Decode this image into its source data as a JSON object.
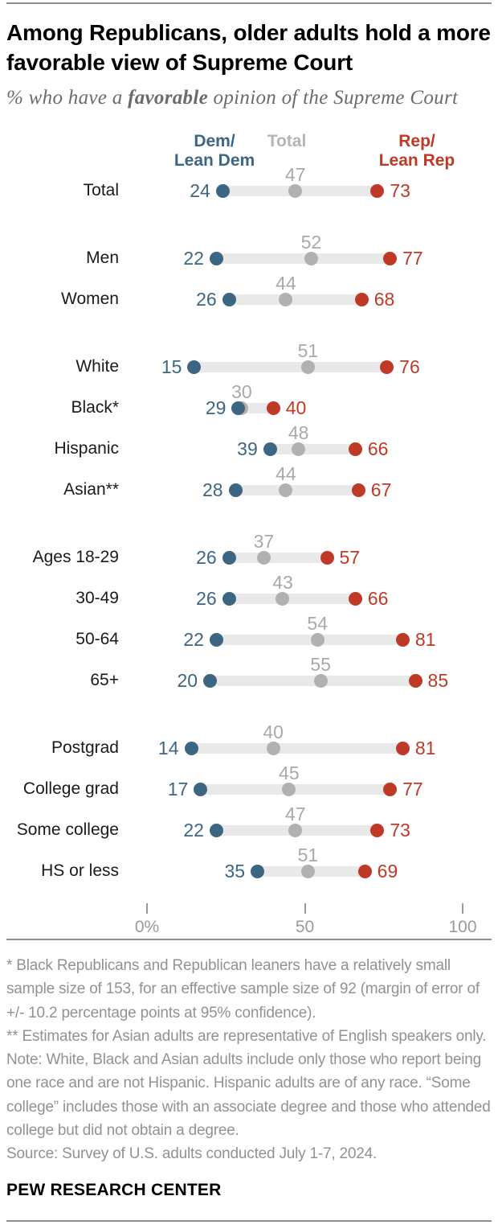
{
  "header": {
    "title": "Among Republicans, older adults hold a more favorable view of Supreme Court",
    "subtitle_prefix": "% who have a ",
    "subtitle_bold": "favorable",
    "subtitle_suffix": " opinion of the Supreme Court"
  },
  "legend": {
    "dem_line1": "Dem/",
    "dem_line2": "Lean Dem",
    "total": "Total",
    "rep_line1": "Rep/",
    "rep_line2": "Lean Rep"
  },
  "chart_data": {
    "type": "dumbbell-dot-plot",
    "unit": "percent favorable",
    "series": [
      "Dem/Lean Dem",
      "Total",
      "Rep/Lean Rep"
    ],
    "colors": {
      "dem": "#3d6683",
      "rep": "#bf3927",
      "total_dot": "#b1b1b1",
      "total_text": "#a9a9a9",
      "total_legend": "#b5b5b5",
      "track": "#e9e9e9"
    },
    "axis": {
      "min": 0,
      "max": 100,
      "ticks": [
        {
          "label": "0%",
          "value": 0
        },
        {
          "label": "50",
          "value": 50
        },
        {
          "label": "100",
          "value": 100
        }
      ]
    },
    "groups": [
      {
        "rows": [
          {
            "label": "Total",
            "dem": 24,
            "total": 47,
            "rep": 73
          }
        ]
      },
      {
        "rows": [
          {
            "label": "Men",
            "dem": 22,
            "total": 52,
            "rep": 77
          },
          {
            "label": "Women",
            "dem": 26,
            "total": 44,
            "rep": 68
          }
        ]
      },
      {
        "rows": [
          {
            "label": "White",
            "dem": 15,
            "total": 51,
            "rep": 76
          },
          {
            "label": "Black*",
            "dem": 29,
            "total": 30,
            "rep": 40
          },
          {
            "label": "Hispanic",
            "dem": 39,
            "total": 48,
            "rep": 66
          },
          {
            "label": "Asian**",
            "dem": 28,
            "total": 44,
            "rep": 67
          }
        ]
      },
      {
        "rows": [
          {
            "label": "Ages 18-29",
            "dem": 26,
            "total": 37,
            "rep": 57
          },
          {
            "label": "30-49",
            "dem": 26,
            "total": 43,
            "rep": 66
          },
          {
            "label": "50-64",
            "dem": 22,
            "total": 54,
            "rep": 81
          },
          {
            "label": "65+",
            "dem": 20,
            "total": 55,
            "rep": 85
          }
        ]
      },
      {
        "rows": [
          {
            "label": "Postgrad",
            "dem": 14,
            "total": 40,
            "rep": 81
          },
          {
            "label": "College grad",
            "dem": 17,
            "total": 45,
            "rep": 77
          },
          {
            "label": "Some college",
            "dem": 22,
            "total": 47,
            "rep": 73
          },
          {
            "label": "HS or less",
            "dem": 35,
            "total": 51,
            "rep": 69
          }
        ]
      }
    ]
  },
  "notes": [
    "* Black Republicans and Republican leaners have a relatively small sample size of 153, for an effective sample size of 92 (margin of error of +/- 10.2 percentage points at 95% confidence).",
    "** Estimates for Asian adults are representative of English speakers only.",
    "Note: White, Black and Asian adults include only those who report being one race and are not Hispanic. Hispanic adults are of any race. “Some college” includes those with an associate degree and those who attended college but did not obtain a degree.",
    "Source: Survey of U.S. adults conducted July 1-7, 2024."
  ],
  "footer": {
    "brand": "PEW RESEARCH CENTER"
  }
}
